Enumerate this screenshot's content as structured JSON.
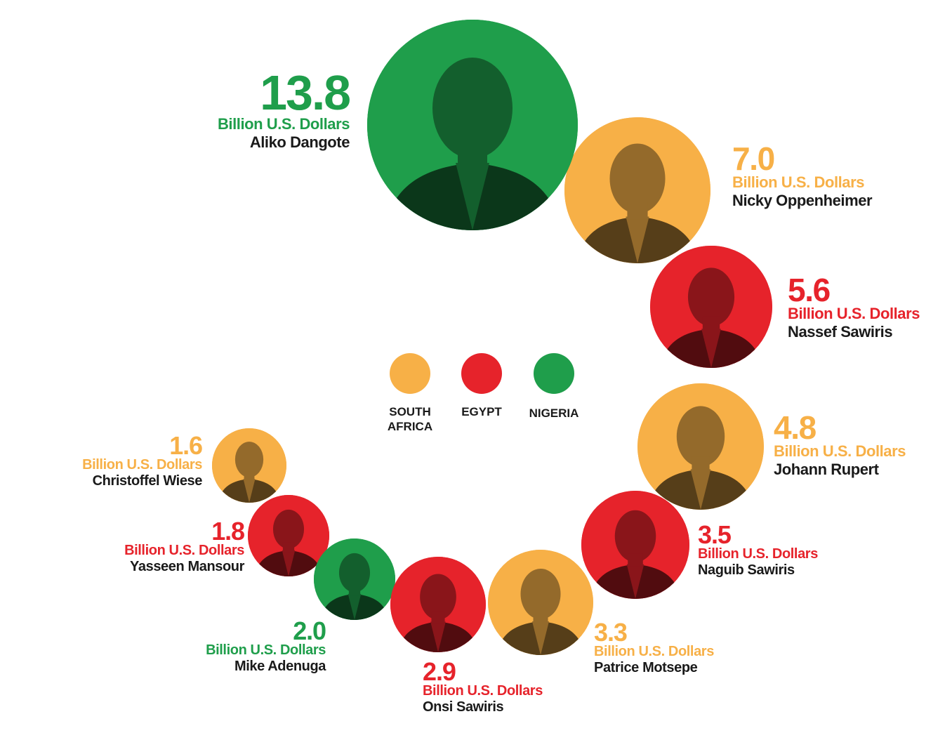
{
  "chart_data": {
    "type": "bubble",
    "unit": "Billion U.S. Dollars",
    "legend": [
      {
        "label": "SOUTH\nAFRICA",
        "color": "#f7b047"
      },
      {
        "label": "EGYPT",
        "color": "#e6232b"
      },
      {
        "label": "NIGERIA",
        "color": "#1f9e4b"
      }
    ],
    "series": [
      {
        "name": "Aliko Dangote",
        "value": 13.8,
        "value_text": "13.8",
        "color": "#1f9e4b"
      },
      {
        "name": "Nicky Oppenheimer",
        "value": 7.0,
        "value_text": "7.0",
        "color": "#f7b047"
      },
      {
        "name": "Nassef Sawiris",
        "value": 5.6,
        "value_text": "5.6",
        "color": "#e6232b"
      },
      {
        "name": "Johann Rupert",
        "value": 4.8,
        "value_text": "4.8",
        "color": "#f7b047"
      },
      {
        "name": "Naguib Sawiris",
        "value": 3.5,
        "value_text": "3.5",
        "color": "#e6232b"
      },
      {
        "name": "Patrice Motsepe",
        "value": 3.3,
        "value_text": "3.3",
        "color": "#f7b047"
      },
      {
        "name": "Onsi Sawiris",
        "value": 2.9,
        "value_text": "2.9",
        "color": "#e6232b"
      },
      {
        "name": "Mike Adenuga",
        "value": 2.0,
        "value_text": "2.0",
        "color": "#1f9e4b"
      },
      {
        "name": "Yasseen Mansour",
        "value": 1.8,
        "value_text": "1.8",
        "color": "#e6232b"
      },
      {
        "name": "Christoffel Wiese",
        "value": 1.6,
        "value_text": "1.6",
        "color": "#f7b047"
      }
    ]
  }
}
